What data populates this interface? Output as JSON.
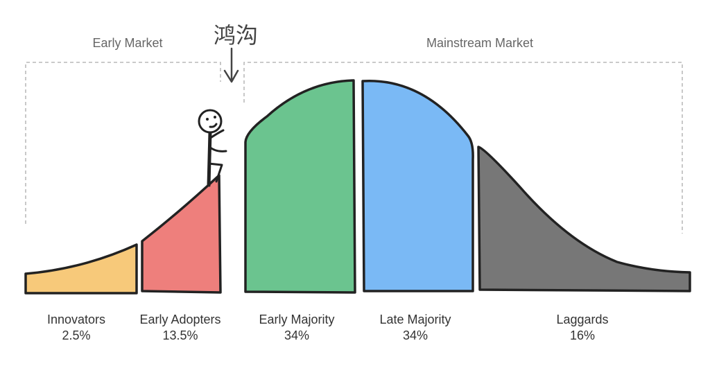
{
  "markets": {
    "early": "Early Market",
    "mainstream": "Mainstream Market"
  },
  "chasm_label": "鸿沟",
  "segments": [
    {
      "name": "Innovators",
      "percent": "2.5%",
      "color": "#f7c97a"
    },
    {
      "name": "Early Adopters",
      "percent": "13.5%",
      "color": "#ee7f7c"
    },
    {
      "name": "Early Majority",
      "percent": "34%",
      "color": "#6bc48f"
    },
    {
      "name": "Late Majority",
      "percent": "34%",
      "color": "#7ab9f5"
    },
    {
      "name": "Laggards",
      "percent": "16%",
      "color": "#777777"
    }
  ]
}
